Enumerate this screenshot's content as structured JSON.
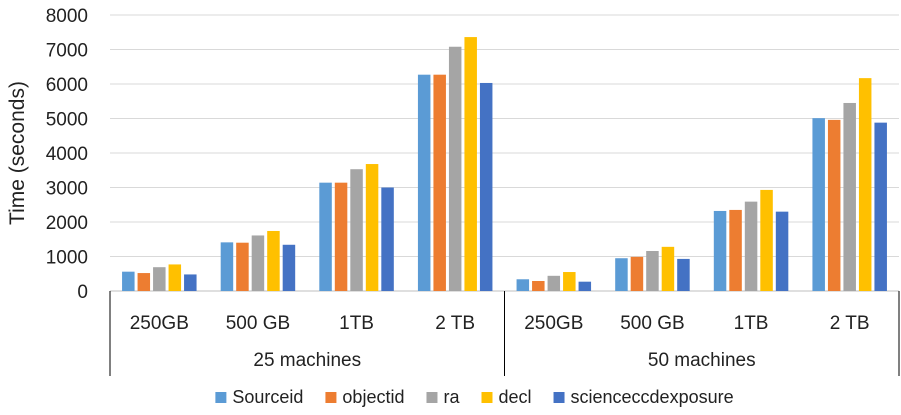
{
  "chart_data": {
    "type": "bar",
    "ylabel": "Time (seconds)",
    "ylim": [
      0,
      8000
    ],
    "yticks": [
      0,
      1000,
      2000,
      3000,
      4000,
      5000,
      6000,
      7000,
      8000
    ],
    "grid": "horizontal",
    "legend_position": "bottom",
    "groups": [
      {
        "label": "25 machines",
        "categories": [
          "250GB",
          "500 GB",
          "1TB",
          "2 TB"
        ]
      },
      {
        "label": "50 machines",
        "categories": [
          "250GB",
          "500 GB",
          "1TB",
          "2 TB"
        ]
      }
    ],
    "series": [
      {
        "name": "Sourceid",
        "color": "#5B9BD5",
        "values": [
          560,
          1410,
          3140,
          6270,
          340,
          950,
          2320,
          5010
        ]
      },
      {
        "name": "objectid",
        "color": "#ED7D31",
        "values": [
          520,
          1400,
          3140,
          6270,
          290,
          990,
          2350,
          4960
        ]
      },
      {
        "name": "ra",
        "color": "#A5A5A5",
        "values": [
          690,
          1610,
          3530,
          7080,
          440,
          1160,
          2590,
          5450
        ]
      },
      {
        "name": "decl",
        "color": "#FFC000",
        "values": [
          770,
          1740,
          3680,
          7360,
          550,
          1280,
          2930,
          6170
        ]
      },
      {
        "name": "scienceccdexposure",
        "color": "#4472C4",
        "values": [
          480,
          1340,
          3000,
          6030,
          270,
          930,
          2300,
          4880
        ]
      }
    ]
  }
}
